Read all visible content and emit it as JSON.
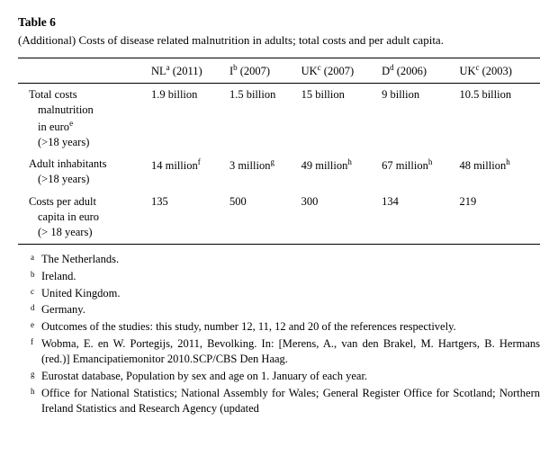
{
  "table_label": "Table 6",
  "caption": "(Additional) Costs of disease related malnutrition in adults; total costs and per adult capita.",
  "columns": [
    {
      "country": "NL",
      "sup": "a",
      "year": "2011"
    },
    {
      "country": "I",
      "sup": "b",
      "year": "2007"
    },
    {
      "country": "UK",
      "sup": "c",
      "year": "2007"
    },
    {
      "country": "D",
      "sup": "d",
      "year": "2006"
    },
    {
      "country": "UK",
      "sup": "c",
      "year": "2003"
    }
  ],
  "rows": [
    {
      "label_lines": [
        "Total costs",
        "malnutrition",
        "in euro",
        "(>18 years)"
      ],
      "label_sup_after_line": 2,
      "label_sup": "e",
      "cells": [
        {
          "text": "1.9 billion"
        },
        {
          "text": "1.5 billion"
        },
        {
          "text": "15 billion"
        },
        {
          "text": "9 billion"
        },
        {
          "text": "10.5 billion"
        }
      ]
    },
    {
      "label_lines": [
        "Adult inhabitants",
        "(>18 years)"
      ],
      "cells": [
        {
          "text": "14 million",
          "sup": "f"
        },
        {
          "text": "3 million",
          "sup": "g"
        },
        {
          "text": "49 million",
          "sup": "h"
        },
        {
          "text": "67 million",
          "sup": "h"
        },
        {
          "text": "48 million",
          "sup": "h"
        }
      ]
    },
    {
      "label_lines": [
        "Costs per adult",
        "capita in euro",
        "(> 18 years)"
      ],
      "cells": [
        {
          "text": "135"
        },
        {
          "text": "500"
        },
        {
          "text": "300"
        },
        {
          "text": "134"
        },
        {
          "text": "219"
        }
      ]
    }
  ],
  "footnotes": [
    {
      "mark": "a",
      "text": "The Netherlands."
    },
    {
      "mark": "b",
      "text": "Ireland."
    },
    {
      "mark": "c",
      "text": "United Kingdom."
    },
    {
      "mark": "d",
      "text": "Germany."
    },
    {
      "mark": "e",
      "text": "Outcomes of the studies: this study, number 12, 11, 12 and 20 of the references respectively."
    },
    {
      "mark": "f",
      "text": "Wobma, E. en W. Portegijs, 2011, Bevolking. In: [Merens, A., van den Brakel, M. Hartgers, B. Hermans (red.)] Emancipatiemonitor 2010.SCP/CBS Den Haag."
    },
    {
      "mark": "g",
      "text": "Eurostat database, Population by sex and age on 1. January of each year."
    },
    {
      "mark": "h",
      "text": "Office for National Statistics; National Assembly for Wales; General Register Office for Scotland; Northern Ireland Statistics and Research Agency (updated"
    }
  ]
}
